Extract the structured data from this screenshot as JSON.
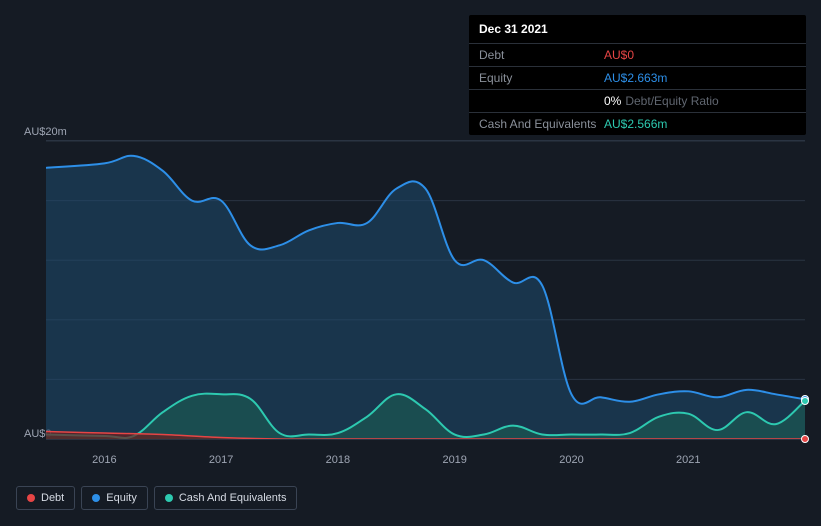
{
  "background_color": "#151b24",
  "tooltip": {
    "date": "Dec 31 2021",
    "rows": [
      {
        "label": "Debt",
        "value": "AU$0",
        "color": "#e64545",
        "suffix": null
      },
      {
        "label": "Equity",
        "value": "AU$2.663m",
        "color": "#2d8fe8",
        "suffix": null
      },
      {
        "label": "",
        "value": "0%",
        "color": "#ffffff",
        "suffix": "Debt/Equity Ratio"
      },
      {
        "label": "Cash And Equivalents",
        "value": "AU$2.566m",
        "color": "#2dc9b0",
        "suffix": null
      }
    ]
  },
  "chart": {
    "type": "area-line",
    "y_max": 20,
    "y_min": 0,
    "y_label_top": "AU$20m",
    "y_label_bottom": "AU$0",
    "x_domain": [
      2015.5,
      2022.0
    ],
    "x_ticks": [
      2016,
      2017,
      2018,
      2019,
      2020,
      2021
    ],
    "x_tick_labels": [
      "2016",
      "2017",
      "2018",
      "2019",
      "2020",
      "2021"
    ],
    "gridline_color": "#2a3442",
    "grid_positions": [
      0,
      0.2,
      0.4,
      0.6,
      0.8,
      1.0
    ],
    "series": [
      {
        "name": "Equity",
        "color": "#2d8fe8",
        "fill": "#1e4a6e",
        "fill_opacity": 0.55,
        "stroke_width": 2,
        "points": [
          [
            2015.5,
            18.2
          ],
          [
            2016.0,
            18.5
          ],
          [
            2016.25,
            19.0
          ],
          [
            2016.5,
            18.0
          ],
          [
            2016.75,
            16.0
          ],
          [
            2017.0,
            16.0
          ],
          [
            2017.25,
            13.0
          ],
          [
            2017.5,
            13.0
          ],
          [
            2017.75,
            14.0
          ],
          [
            2018.0,
            14.5
          ],
          [
            2018.25,
            14.5
          ],
          [
            2018.5,
            16.8
          ],
          [
            2018.75,
            16.8
          ],
          [
            2019.0,
            12.0
          ],
          [
            2019.25,
            12.0
          ],
          [
            2019.5,
            10.5
          ],
          [
            2019.75,
            10.3
          ],
          [
            2020.0,
            3.0
          ],
          [
            2020.25,
            2.8
          ],
          [
            2020.5,
            2.5
          ],
          [
            2020.75,
            3.0
          ],
          [
            2021.0,
            3.2
          ],
          [
            2021.25,
            2.8
          ],
          [
            2021.5,
            3.3
          ],
          [
            2021.75,
            3.0
          ],
          [
            2022.0,
            2.663
          ]
        ]
      },
      {
        "name": "Cash And Equivalents",
        "color": "#2dc9b0",
        "fill": "#1a5d54",
        "fill_opacity": 0.6,
        "stroke_width": 2,
        "points": [
          [
            2015.5,
            0.3
          ],
          [
            2016.0,
            0.2
          ],
          [
            2016.25,
            0.2
          ],
          [
            2016.5,
            1.8
          ],
          [
            2016.75,
            2.9
          ],
          [
            2017.0,
            3.0
          ],
          [
            2017.25,
            2.7
          ],
          [
            2017.5,
            0.4
          ],
          [
            2017.75,
            0.3
          ],
          [
            2018.0,
            0.4
          ],
          [
            2018.25,
            1.5
          ],
          [
            2018.5,
            3.0
          ],
          [
            2018.75,
            2.0
          ],
          [
            2019.0,
            0.3
          ],
          [
            2019.25,
            0.3
          ],
          [
            2019.5,
            0.9
          ],
          [
            2019.75,
            0.3
          ],
          [
            2020.0,
            0.3
          ],
          [
            2020.25,
            0.3
          ],
          [
            2020.5,
            0.4
          ],
          [
            2020.75,
            1.5
          ],
          [
            2021.0,
            1.7
          ],
          [
            2021.25,
            0.6
          ],
          [
            2021.5,
            1.8
          ],
          [
            2021.75,
            1.0
          ],
          [
            2022.0,
            2.566
          ]
        ]
      },
      {
        "name": "Debt",
        "color": "#e64545",
        "fill": "#6b2020",
        "fill_opacity": 0.7,
        "stroke_width": 1.5,
        "points": [
          [
            2015.5,
            0.5
          ],
          [
            2016.0,
            0.4
          ],
          [
            2016.5,
            0.3
          ],
          [
            2017.0,
            0.1
          ],
          [
            2017.5,
            0.0
          ],
          [
            2018.0,
            0.0
          ],
          [
            2019.0,
            0.0
          ],
          [
            2020.0,
            0.0
          ],
          [
            2021.0,
            0.0
          ],
          [
            2022.0,
            0.0
          ]
        ]
      }
    ],
    "markers": [
      {
        "x": 2022.0,
        "y": 2.663,
        "color": "#2d8fe8"
      },
      {
        "x": 2022.0,
        "y": 2.566,
        "color": "#2dc9b0"
      },
      {
        "x": 2022.0,
        "y": 0.0,
        "color": "#e64545"
      }
    ]
  },
  "legend": [
    {
      "label": "Debt",
      "color": "#e64545"
    },
    {
      "label": "Equity",
      "color": "#2d8fe8"
    },
    {
      "label": "Cash And Equivalents",
      "color": "#2dc9b0"
    }
  ]
}
